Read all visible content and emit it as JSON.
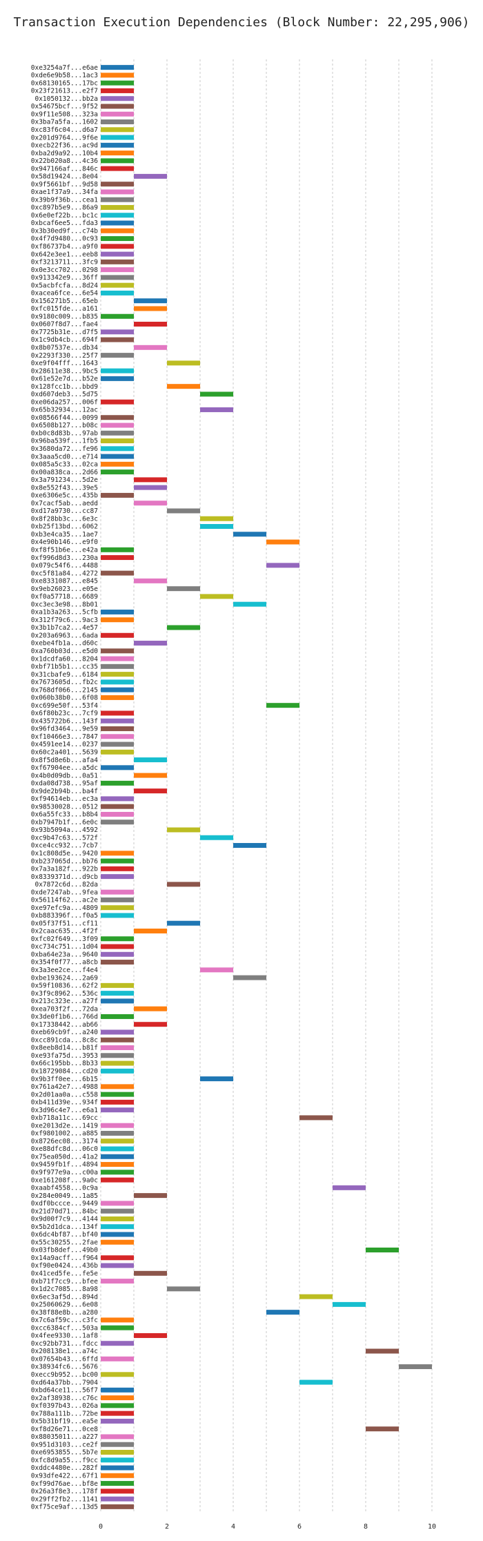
{
  "chart_data": {
    "type": "bar",
    "orientation": "horizontal-gantt",
    "title": "Transaction Execution Dependencies (Block Number: 22,295,906)",
    "xlabel": "",
    "ylabel": "",
    "xlim": [
      0,
      10.5
    ],
    "xticks": [
      0,
      2,
      4,
      6,
      8,
      10
    ],
    "grid": "dashed vertical at every 1 unit",
    "legend": "none",
    "colors": [
      "#1f77b4",
      "#ff7f0e",
      "#2ca02c",
      "#d62728",
      "#9467bd",
      "#8c564b",
      "#e377c2",
      "#7f7f7f",
      "#bcbd22",
      "#17becf"
    ],
    "transactions": [
      {
        "label": "0xe3254a7f...e6ae",
        "start": 0,
        "end": 1
      },
      {
        "label": "0xde6e9b58...1ac3",
        "start": 0,
        "end": 1
      },
      {
        "label": "0x68130165...17bc",
        "start": 0,
        "end": 1
      },
      {
        "label": "0x23f21613...e2f7",
        "start": 0,
        "end": 1
      },
      {
        "label": "0x1050132...bb2a",
        "start": 0,
        "end": 1
      },
      {
        "label": "0x54675bcf...9f52",
        "start": 0,
        "end": 1
      },
      {
        "label": "0x9f11e508...323a",
        "start": 0,
        "end": 1
      },
      {
        "label": "0x3ba7a5fa...1602",
        "start": 0,
        "end": 1
      },
      {
        "label": "0xc83f6c04...d6a7",
        "start": 0,
        "end": 1
      },
      {
        "label": "0x201d9764...9f6e",
        "start": 0,
        "end": 1
      },
      {
        "label": "0xecb22f36...ac9d",
        "start": 0,
        "end": 1
      },
      {
        "label": "0xba2d9a92...10b4",
        "start": 0,
        "end": 1
      },
      {
        "label": "0x22b020a8...4c36",
        "start": 0,
        "end": 1
      },
      {
        "label": "0x947166af...846c",
        "start": 0,
        "end": 1
      },
      {
        "label": "0x58d19424...8e04",
        "start": 1,
        "end": 2
      },
      {
        "label": "0x9f5661bf...9d58",
        "start": 0,
        "end": 1
      },
      {
        "label": "0xae1f37a9...34fa",
        "start": 0,
        "end": 1
      },
      {
        "label": "0x39b9f36b...cea1",
        "start": 0,
        "end": 1
      },
      {
        "label": "0xc897b5e9...86a9",
        "start": 0,
        "end": 1
      },
      {
        "label": "0x6e0ef22b...bc1c",
        "start": 0,
        "end": 1
      },
      {
        "label": "0xbcaf6ee5...fda3",
        "start": 0,
        "end": 1
      },
      {
        "label": "0x3b30ed9f...c74b",
        "start": 0,
        "end": 1
      },
      {
        "label": "0x4f7d9480...0c93",
        "start": 0,
        "end": 1
      },
      {
        "label": "0xf86737b4...a9f0",
        "start": 0,
        "end": 1
      },
      {
        "label": "0x642e3ee1...eeb8",
        "start": 0,
        "end": 1
      },
      {
        "label": "0xf3213711...3fc9",
        "start": 0,
        "end": 1
      },
      {
        "label": "0x0e3cc702...0298",
        "start": 0,
        "end": 1
      },
      {
        "label": "0x913342e9...36ff",
        "start": 0,
        "end": 1
      },
      {
        "label": "0x5acbfcfa...8d24",
        "start": 0,
        "end": 1
      },
      {
        "label": "0xacea6fce...6e54",
        "start": 0,
        "end": 1
      },
      {
        "label": "0x156271b5...65eb",
        "start": 1,
        "end": 2
      },
      {
        "label": "0xfc015fde...a161",
        "start": 1,
        "end": 2
      },
      {
        "label": "0x9180c009...b835",
        "start": 0,
        "end": 1
      },
      {
        "label": "0x0607f8d7...fae4",
        "start": 1,
        "end": 2
      },
      {
        "label": "0x7725b31e...d7f5",
        "start": 0,
        "end": 1
      },
      {
        "label": "0x1c9db4cb...694f",
        "start": 0,
        "end": 1
      },
      {
        "label": "0x8b07537e...db34",
        "start": 1,
        "end": 2
      },
      {
        "label": "0x2293f330...25f7",
        "start": 0,
        "end": 1
      },
      {
        "label": "0xe9f04fff...1643",
        "start": 2,
        "end": 3
      },
      {
        "label": "0x28611e38...9bc5",
        "start": 0,
        "end": 1
      },
      {
        "label": "0x61e52e7d...b52e",
        "start": 0,
        "end": 1
      },
      {
        "label": "0x128fcc1b...bbd9",
        "start": 2,
        "end": 3
      },
      {
        "label": "0xd607deb3...5d75",
        "start": 3,
        "end": 4
      },
      {
        "label": "0xe06da257...006f",
        "start": 0,
        "end": 1
      },
      {
        "label": "0x65b32934...12ac",
        "start": 3,
        "end": 4
      },
      {
        "label": "0x08566f44...0099",
        "start": 0,
        "end": 1
      },
      {
        "label": "0x6508b127...b08c",
        "start": 0,
        "end": 1
      },
      {
        "label": "0xb0c8d83b...97ab",
        "start": 0,
        "end": 1
      },
      {
        "label": "0x96ba539f...1fb5",
        "start": 0,
        "end": 1
      },
      {
        "label": "0x3680da72...fe96",
        "start": 0,
        "end": 1
      },
      {
        "label": "0x3aaa5cd0...e714",
        "start": 0,
        "end": 1
      },
      {
        "label": "0x085a5c33...02ca",
        "start": 0,
        "end": 1
      },
      {
        "label": "0x00a838ca...2d66",
        "start": 0,
        "end": 1
      },
      {
        "label": "0x3a791234...5d2e",
        "start": 1,
        "end": 2
      },
      {
        "label": "0x8e552f43...39e5",
        "start": 1,
        "end": 2
      },
      {
        "label": "0xe6306e5c...435b",
        "start": 0,
        "end": 1
      },
      {
        "label": "0x7cacf5ab...aedd",
        "start": 1,
        "end": 2
      },
      {
        "label": "0xd17a9730...cc87",
        "start": 2,
        "end": 3
      },
      {
        "label": "0x8f28bb3c...6e3c",
        "start": 3,
        "end": 4
      },
      {
        "label": "0xb25f13bd...6062",
        "start": 3,
        "end": 4
      },
      {
        "label": "0xb3e4ca35...1ae7",
        "start": 4,
        "end": 5
      },
      {
        "label": "0x4e90b146...e9f0",
        "start": 5,
        "end": 6
      },
      {
        "label": "0xf8f51b6e...e42a",
        "start": 0,
        "end": 1
      },
      {
        "label": "0xf996d8d3...230a",
        "start": 0,
        "end": 1
      },
      {
        "label": "0x079c54f6...4488",
        "start": 5,
        "end": 6
      },
      {
        "label": "0xc5f81a84...4272",
        "start": 0,
        "end": 1
      },
      {
        "label": "0xe8331087...e845",
        "start": 1,
        "end": 2
      },
      {
        "label": "0x9eb26023...e05e",
        "start": 2,
        "end": 3
      },
      {
        "label": "0xf0a57718...6689",
        "start": 3,
        "end": 4
      },
      {
        "label": "0xc3ec3e98...8b01",
        "start": 4,
        "end": 5
      },
      {
        "label": "0xa1b3a263...5cfb",
        "start": 0,
        "end": 1
      },
      {
        "label": "0x312f79c6...9ac3",
        "start": 0,
        "end": 1
      },
      {
        "label": "0x3b1b7ca2...4e57",
        "start": 2,
        "end": 3
      },
      {
        "label": "0x203a6963...6ada",
        "start": 0,
        "end": 1
      },
      {
        "label": "0xebe4fb1a...d60c",
        "start": 1,
        "end": 2
      },
      {
        "label": "0xa760b03d...e5d0",
        "start": 0,
        "end": 1
      },
      {
        "label": "0x1dcdfa60...8204",
        "start": 0,
        "end": 1
      },
      {
        "label": "0xbf71b5b1...cc35",
        "start": 0,
        "end": 1
      },
      {
        "label": "0x31cbafe9...6184",
        "start": 0,
        "end": 1
      },
      {
        "label": "0x7673605d...fb2c",
        "start": 0,
        "end": 1
      },
      {
        "label": "0x768df066...2145",
        "start": 0,
        "end": 1
      },
      {
        "label": "0x060b38b0...6f08",
        "start": 0,
        "end": 1
      },
      {
        "label": "0xc699e50f...53f4",
        "start": 5,
        "end": 6
      },
      {
        "label": "0x6f80b23c...7cf9",
        "start": 0,
        "end": 1
      },
      {
        "label": "0x435722b6...143f",
        "start": 0,
        "end": 1
      },
      {
        "label": "0x96fd3464...9e59",
        "start": 0,
        "end": 1
      },
      {
        "label": "0xf10466e3...7847",
        "start": 0,
        "end": 1
      },
      {
        "label": "0x4591ee14...0237",
        "start": 0,
        "end": 1
      },
      {
        "label": "0x60c2a401...5639",
        "start": 0,
        "end": 1
      },
      {
        "label": "0x8f5d8e6b...afa4",
        "start": 1,
        "end": 2
      },
      {
        "label": "0xf67904ee...a5dc",
        "start": 0,
        "end": 1
      },
      {
        "label": "0x4b0d09db...0a51",
        "start": 1,
        "end": 2
      },
      {
        "label": "0xda08d738...95af",
        "start": 0,
        "end": 1
      },
      {
        "label": "0x9de2b94b...ba4f",
        "start": 1,
        "end": 2
      },
      {
        "label": "0xf94614eb...ec3a",
        "start": 0,
        "end": 1
      },
      {
        "label": "0x98530028...0512",
        "start": 0,
        "end": 1
      },
      {
        "label": "0x6a55fc33...b8b4",
        "start": 0,
        "end": 1
      },
      {
        "label": "0xb7947b1f...6e0c",
        "start": 0,
        "end": 1
      },
      {
        "label": "0x93b5094a...4592",
        "start": 2,
        "end": 3
      },
      {
        "label": "0xc9b47c63...572f",
        "start": 3,
        "end": 4
      },
      {
        "label": "0xce4cc932...7cb7",
        "start": 4,
        "end": 5
      },
      {
        "label": "0x1c808d5e...9420",
        "start": 0,
        "end": 1
      },
      {
        "label": "0xb237065d...bb76",
        "start": 0,
        "end": 1
      },
      {
        "label": "0x7a3a182f...922b",
        "start": 0,
        "end": 1
      },
      {
        "label": "0x8339371d...d9cb",
        "start": 0,
        "end": 1
      },
      {
        "label": "0x7872c6d...82da",
        "start": 2,
        "end": 3
      },
      {
        "label": "0xde7247ab...9fea",
        "start": 0,
        "end": 1
      },
      {
        "label": "0x56114f62...ac2e",
        "start": 0,
        "end": 1
      },
      {
        "label": "0xe97efc9a...4809",
        "start": 0,
        "end": 1
      },
      {
        "label": "0xb883396f...f0a5",
        "start": 0,
        "end": 1
      },
      {
        "label": "0x05f37f51...cf11",
        "start": 2,
        "end": 3
      },
      {
        "label": "0x2caac635...4f2f",
        "start": 1,
        "end": 2
      },
      {
        "label": "0xfc02f649...3f09",
        "start": 0,
        "end": 1
      },
      {
        "label": "0xc734c751...1d04",
        "start": 0,
        "end": 1
      },
      {
        "label": "0xba64e23a...9640",
        "start": 0,
        "end": 1
      },
      {
        "label": "0x354f0f77...a8cb",
        "start": 0,
        "end": 1
      },
      {
        "label": "0x3a3ee2ce...f4e4",
        "start": 3,
        "end": 4
      },
      {
        "label": "0xbe193624...2a69",
        "start": 4,
        "end": 5
      },
      {
        "label": "0x59f10836...62f2",
        "start": 0,
        "end": 1
      },
      {
        "label": "0x3f9c8962...536c",
        "start": 0,
        "end": 1
      },
      {
        "label": "0x213c323e...a27f",
        "start": 0,
        "end": 1
      },
      {
        "label": "0xea703f2f...72da",
        "start": 1,
        "end": 2
      },
      {
        "label": "0x3de0f1b6...766d",
        "start": 0,
        "end": 1
      },
      {
        "label": "0x17338442...ab66",
        "start": 1,
        "end": 2
      },
      {
        "label": "0xeb69cb9f...a240",
        "start": 0,
        "end": 1
      },
      {
        "label": "0xcc891cda...8c8c",
        "start": 0,
        "end": 1
      },
      {
        "label": "0x8eeb8d14...b81f",
        "start": 0,
        "end": 1
      },
      {
        "label": "0xe93fa75d...3953",
        "start": 0,
        "end": 1
      },
      {
        "label": "0x66c195bb...8b33",
        "start": 0,
        "end": 1
      },
      {
        "label": "0x18729084...cd20",
        "start": 0,
        "end": 1
      },
      {
        "label": "0x9b3ff0ee...6b15",
        "start": 3,
        "end": 4
      },
      {
        "label": "0x761a42e7...4988",
        "start": 0,
        "end": 1
      },
      {
        "label": "0x2d01aa0a...c558",
        "start": 0,
        "end": 1
      },
      {
        "label": "0xb411d39e...934f",
        "start": 0,
        "end": 1
      },
      {
        "label": "0x3d96c4e7...e6a1",
        "start": 0,
        "end": 1
      },
      {
        "label": "0xb718a11c...69cc",
        "start": 6,
        "end": 7
      },
      {
        "label": "0xe2013d2e...1419",
        "start": 0,
        "end": 1
      },
      {
        "label": "0xf9801002...a885",
        "start": 0,
        "end": 1
      },
      {
        "label": "0x8726ec08...3174",
        "start": 0,
        "end": 1
      },
      {
        "label": "0xe88dfc8d...06c0",
        "start": 0,
        "end": 1
      },
      {
        "label": "0x75ea050d...41a2",
        "start": 0,
        "end": 1
      },
      {
        "label": "0x9459fb1f...4894",
        "start": 0,
        "end": 1
      },
      {
        "label": "0x9f977e9a...c00a",
        "start": 0,
        "end": 1
      },
      {
        "label": "0xe161208f...9a0c",
        "start": 0,
        "end": 1
      },
      {
        "label": "0xaabf4558...0c9a",
        "start": 7,
        "end": 8
      },
      {
        "label": "0x284e0049...1a85",
        "start": 1,
        "end": 2
      },
      {
        "label": "0xdf0bccce...9449",
        "start": 0,
        "end": 1
      },
      {
        "label": "0x21d70d71...84bc",
        "start": 0,
        "end": 1
      },
      {
        "label": "0x9d00f7c9...4144",
        "start": 0,
        "end": 1
      },
      {
        "label": "0x5b2d1dca...134f",
        "start": 0,
        "end": 1
      },
      {
        "label": "0x6dc4bf87...bf40",
        "start": 0,
        "end": 1
      },
      {
        "label": "0x55c30255...2fae",
        "start": 0,
        "end": 1
      },
      {
        "label": "0x03fb8def...49b0",
        "start": 8,
        "end": 9
      },
      {
        "label": "0x14a9acff...f964",
        "start": 0,
        "end": 1
      },
      {
        "label": "0xf90e0424...436b",
        "start": 0,
        "end": 1
      },
      {
        "label": "0x41ced5fe...fe5e",
        "start": 1,
        "end": 2
      },
      {
        "label": "0xb71f7cc9...bfee",
        "start": 0,
        "end": 1
      },
      {
        "label": "0x1d2c7085...8a98",
        "start": 2,
        "end": 3
      },
      {
        "label": "0x6ec3af5d...894d",
        "start": 6,
        "end": 7
      },
      {
        "label": "0x25060629...6e08",
        "start": 7,
        "end": 8
      },
      {
        "label": "0x38f88e8b...a280",
        "start": 5,
        "end": 6
      },
      {
        "label": "0x7c6af59c...c3fc",
        "start": 0,
        "end": 1
      },
      {
        "label": "0xcc6384cf...503a",
        "start": 0,
        "end": 1
      },
      {
        "label": "0x4fee9330...1af8",
        "start": 1,
        "end": 2
      },
      {
        "label": "0xc92bb731...fdcc",
        "start": 0,
        "end": 1
      },
      {
        "label": "0x208138e1...a74c",
        "start": 8,
        "end": 9
      },
      {
        "label": "0x07654b43...6ffd",
        "start": 0,
        "end": 1
      },
      {
        "label": "0x38934fc6...5676",
        "start": 9,
        "end": 10
      },
      {
        "label": "0xecc9b952...bc00",
        "start": 0,
        "end": 1
      },
      {
        "label": "0xd64a37bb...7904",
        "start": 6,
        "end": 7
      },
      {
        "label": "0xbd64ce11...56f7",
        "start": 0,
        "end": 1
      },
      {
        "label": "0x2af38938...c76c",
        "start": 0,
        "end": 1
      },
      {
        "label": "0xf0397b43...026a",
        "start": 0,
        "end": 1
      },
      {
        "label": "0x788a111b...72be",
        "start": 0,
        "end": 1
      },
      {
        "label": "0x5b31bf19...ea5e",
        "start": 0,
        "end": 1
      },
      {
        "label": "0xf8d26e71...0ce8",
        "start": 8,
        "end": 9
      },
      {
        "label": "0x88035011...a227",
        "start": 0,
        "end": 1
      },
      {
        "label": "0x951d3103...ce2f",
        "start": 0,
        "end": 1
      },
      {
        "label": "0xe6953855...5b7e",
        "start": 0,
        "end": 1
      },
      {
        "label": "0xfc8d9a55...f9cc",
        "start": 0,
        "end": 1
      },
      {
        "label": "0xddc4480e...282f",
        "start": 0,
        "end": 1
      },
      {
        "label": "0x93dfe422...67f1",
        "start": 0,
        "end": 1
      },
      {
        "label": "0xf99d76ae...bf8e",
        "start": 0,
        "end": 1
      },
      {
        "label": "0x26a3f8e3...178f",
        "start": 0,
        "end": 1
      },
      {
        "label": "0x29ff2fb2...1141",
        "start": 0,
        "end": 1
      },
      {
        "label": "0xf75ce9af...13d5",
        "start": 0,
        "end": 1
      }
    ]
  }
}
